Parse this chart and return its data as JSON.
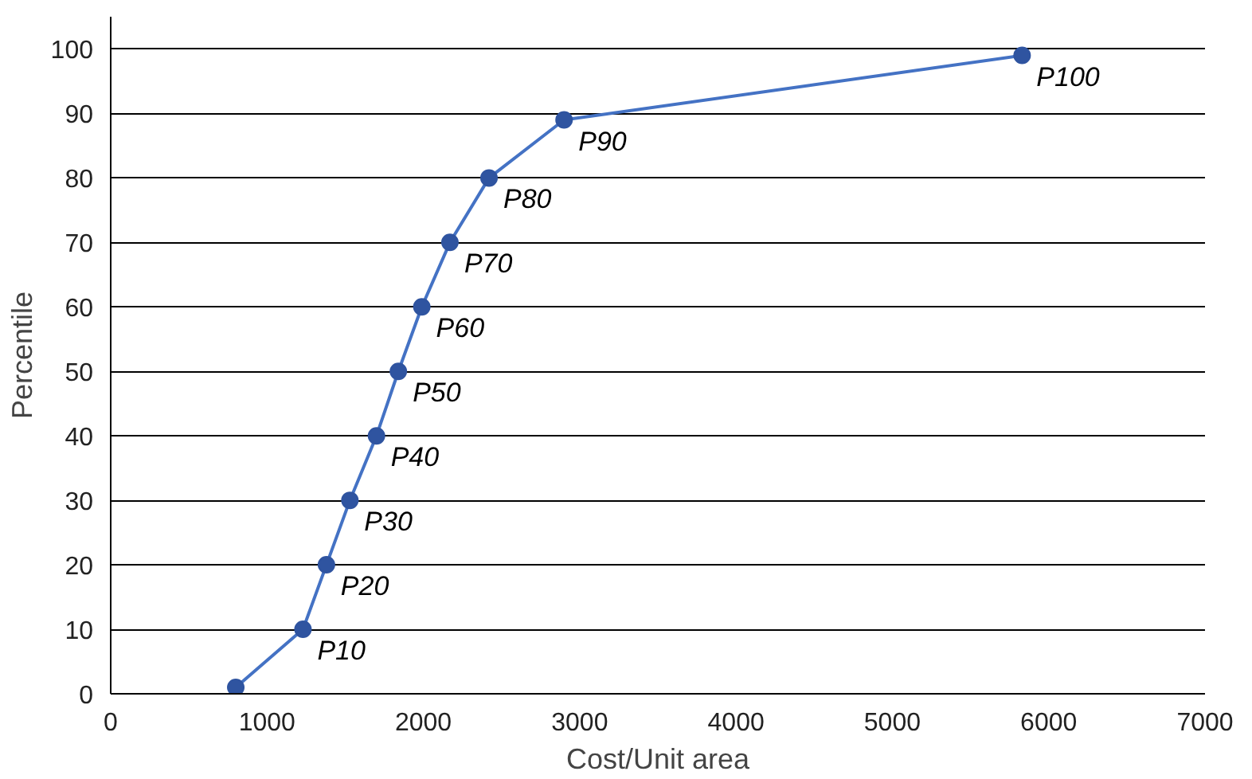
{
  "chart_data": {
    "type": "line",
    "xlabel": "Cost/Unit area",
    "ylabel": "Percentile",
    "x": [
      800,
      1230,
      1380,
      1530,
      1700,
      1840,
      1990,
      2170,
      2420,
      2900,
      5830
    ],
    "series": [
      {
        "color": "#4472c4",
        "values": [
          1,
          10,
          20,
          30,
          40,
          50,
          60,
          70,
          80,
          89,
          99
        ]
      }
    ],
    "marker": "circle",
    "line_style": "solid",
    "xlim": [
      0,
      7000
    ],
    "xticks": [
      0,
      1000,
      2000,
      3000,
      4000,
      5000,
      6000,
      7000
    ],
    "ylim": [
      0,
      105
    ],
    "yticks": [
      0,
      10,
      20,
      30,
      40,
      50,
      60,
      70,
      80,
      90,
      100
    ],
    "grid": "y",
    "annotations": [
      {
        "text": "P10",
        "x": 1230,
        "y": 10
      },
      {
        "text": "P20",
        "x": 1380,
        "y": 20
      },
      {
        "text": "P30",
        "x": 1530,
        "y": 30
      },
      {
        "text": "P40",
        "x": 1700,
        "y": 40
      },
      {
        "text": "P50",
        "x": 1840,
        "y": 50
      },
      {
        "text": "P60",
        "x": 1990,
        "y": 60
      },
      {
        "text": "P70",
        "x": 2170,
        "y": 70
      },
      {
        "text": "P80",
        "x": 2420,
        "y": 80
      },
      {
        "text": "P90",
        "x": 2900,
        "y": 89
      },
      {
        "text": "P100",
        "x": 5830,
        "y": 99
      }
    ]
  }
}
